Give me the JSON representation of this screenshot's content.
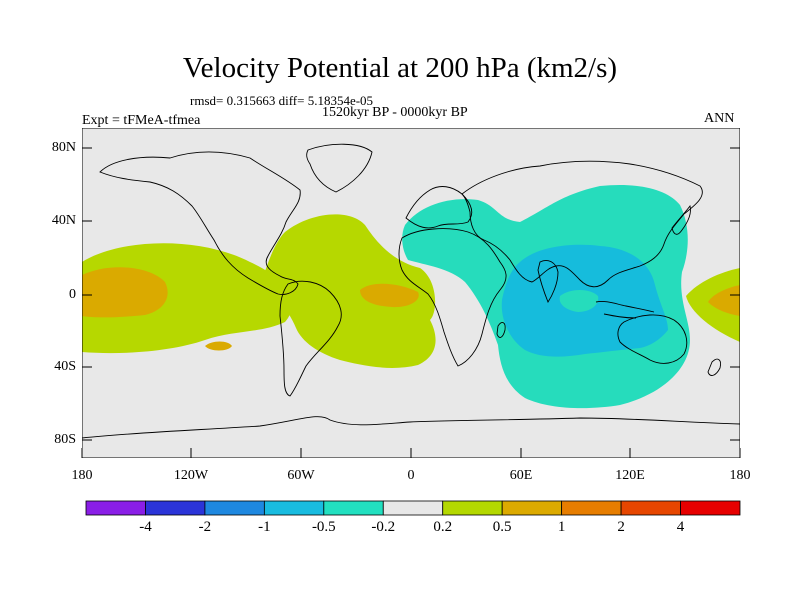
{
  "title": "Velocity Potential at 200 hPa (km2/s)",
  "stats": "rmsd= 0.315663  diff= 5.18354e-05",
  "period": "1520kyr BP - 0000kyr BP",
  "experiment": "Expt = tFMeA-tfmea",
  "season": "ANN",
  "y_labels": [
    "80N",
    "40N",
    "0",
    "40S",
    "80S"
  ],
  "x_labels": [
    "180",
    "120W",
    "60W",
    "0",
    "60E",
    "120E",
    "180"
  ],
  "colorbar": {
    "labels": [
      "-4",
      "-2",
      "-1",
      "-0.5",
      "-0.2",
      "0.2",
      "0.5",
      "1",
      "2",
      "4"
    ],
    "colors": [
      "#8a1ee6",
      "#2b34d8",
      "#1e88e0",
      "#19bce0",
      "#22e0c0",
      "#e8e8e8",
      "#b4d800",
      "#dcaa00",
      "#e67d00",
      "#e64600",
      "#e60000"
    ]
  },
  "colors": {
    "ocean_bg": "#e8e8e8",
    "neg_02": "#26dcbc",
    "neg_05": "#16bcdc",
    "pos_02": "#b6d800",
    "pos_05": "#daaa00"
  }
}
